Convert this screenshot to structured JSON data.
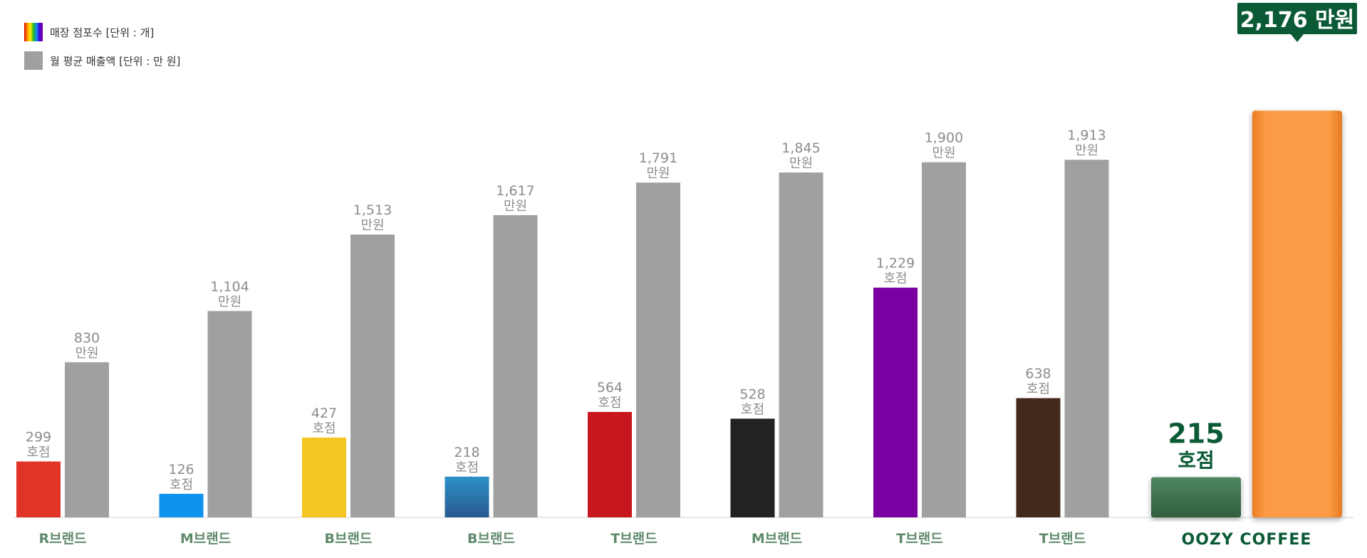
{
  "legend": {
    "stores_label": "매장 점포수 [단위 : 개]",
    "sales_label": "월 평균 매출액 [단위 : 만 원]",
    "stores_swatch": "rainbow",
    "sales_color": "#a0a0a0"
  },
  "chart_data": {
    "type": "bar",
    "categories": [
      "R브랜드",
      "M브랜드",
      "B브랜드",
      "B브랜드",
      "T브랜드",
      "M브랜드",
      "T브랜드",
      "T브랜드",
      "OOZY COFFEE"
    ],
    "series": [
      {
        "name": "매장 점포수 [단위 : 개]",
        "values": [
          299,
          126,
          427,
          218,
          564,
          528,
          1229,
          638,
          215
        ],
        "labels": [
          "299",
          "126",
          "427",
          "218",
          "564",
          "528",
          "1,229",
          "638",
          "215"
        ],
        "unit_label": "호점",
        "colors": [
          "#e03427",
          "#0f93ee",
          "#f3c623",
          "#2a6ea8",
          "#c8161e",
          "#222222",
          "#7b00a1",
          "#43281c",
          "#3b6e48"
        ]
      },
      {
        "name": "월 평균 매출액 [단위 : 만 원]",
        "values": [
          830,
          1104,
          1513,
          1617,
          1791,
          1845,
          1900,
          1913,
          2176
        ],
        "labels": [
          "830",
          "1,104",
          "1,513",
          "1,617",
          "1,791",
          "1,845",
          "1,900",
          "1,913",
          "2,176 만원"
        ],
        "unit_label": "만원",
        "colors": [
          "#a0a0a0",
          "#a0a0a0",
          "#a0a0a0",
          "#a0a0a0",
          "#a0a0a0",
          "#a0a0a0",
          "#a0a0a0",
          "#a0a0a0",
          "#f89a3e"
        ]
      }
    ],
    "highlight": {
      "category": "OOZY COFFEE",
      "color": "#0b5a36"
    },
    "category_label_color": "#5f8a6c",
    "value_label_color": "#8c8c8c",
    "grid": false,
    "legend_position": "top-left"
  }
}
